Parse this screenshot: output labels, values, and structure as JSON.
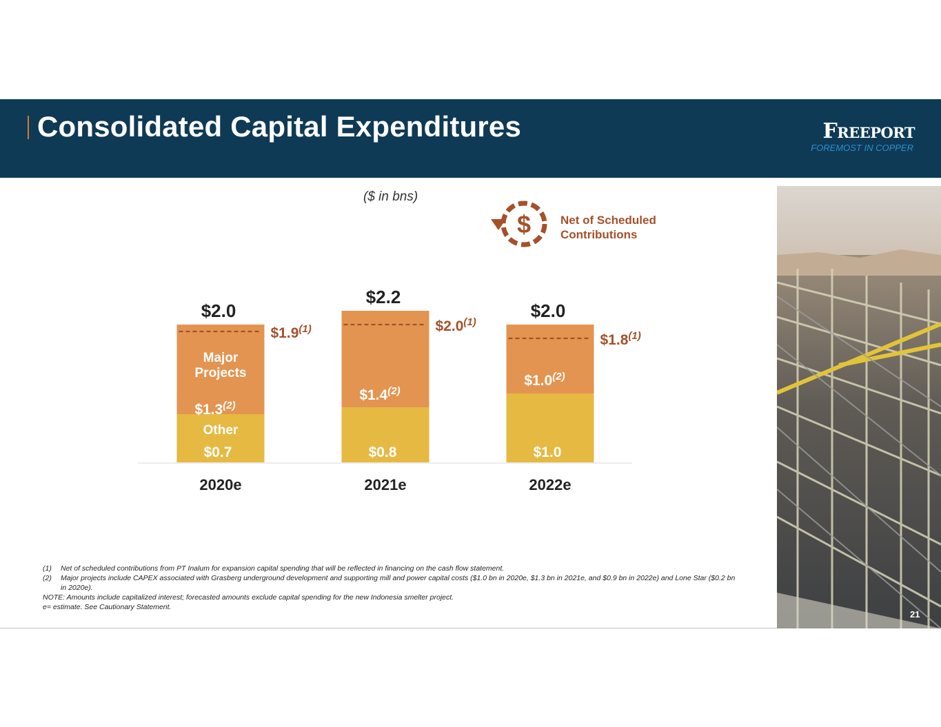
{
  "header": {
    "title": "Consolidated Capital Expenditures",
    "logo_name": "Freeport",
    "logo_tagline": "FOREMOST IN COPPER"
  },
  "units_label": "($ in bns)",
  "legend": {
    "icon": "dollar-cycle-icon",
    "label": "Net of Scheduled Contributions"
  },
  "chart_data": {
    "type": "bar",
    "stacked": true,
    "categories": [
      "2020e",
      "2021e",
      "2022e"
    ],
    "series": [
      {
        "name": "Other",
        "values": [
          0.7,
          0.8,
          1.0
        ],
        "labels": [
          "$0.7",
          "$0.8",
          "$1.0"
        ],
        "color": "#e6b942"
      },
      {
        "name": "Major Projects",
        "values": [
          1.3,
          1.4,
          1.0
        ],
        "labels": [
          "$1.3",
          "$1.4",
          "$1.0"
        ],
        "label_footnote": "(2)",
        "color": "#e39450"
      }
    ],
    "totals": [
      2.0,
      2.2,
      2.0
    ],
    "total_labels": [
      "$2.0",
      "$2.2",
      "$2.0"
    ],
    "net_of_contributions": [
      1.9,
      2.0,
      1.8
    ],
    "net_labels": [
      "$1.9",
      "$2.0",
      "$1.8"
    ],
    "net_footnote": "(1)",
    "net_color": "#a5502a",
    "first_bar_inner_labels": {
      "major": [
        "Major",
        "Projects"
      ],
      "other": "Other"
    },
    "ylim": [
      0,
      2.5
    ]
  },
  "footnotes": [
    {
      "num": "(1)",
      "text": "Net of scheduled contributions from PT Inalum for expansion capital spending that will be reflected in financing on the cash flow statement."
    },
    {
      "num": "(2)",
      "text": "Major projects include CAPEX associated with Grasberg underground development and supporting mill and power capital costs ($1.0 bn in 2020e, $1.3 bn in 2021e, and $0.9 bn in 2022e) and Lone Star ($0.2 bn in 2020e)."
    }
  ],
  "note": "NOTE: Amounts include capitalized interest; forecasted amounts exclude capital spending for the new Indonesia smelter project.",
  "estimate_note": "e= estimate. See Cautionary Statement.",
  "page_number": "21"
}
